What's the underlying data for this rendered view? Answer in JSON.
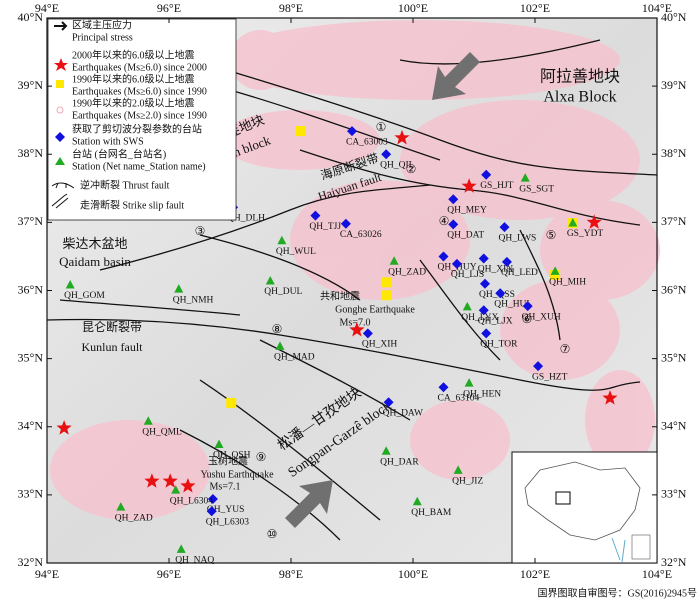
{
  "map": {
    "lon_lim": [
      94,
      104
    ],
    "lat_lim": [
      32,
      40
    ],
    "lon_ticks": [
      {
        "value": 94,
        "label": "94°E"
      },
      {
        "value": 96,
        "label": "96°E"
      },
      {
        "value": 98,
        "label": "98°E"
      },
      {
        "value": 100,
        "label": "100°E"
      },
      {
        "value": 102,
        "label": "102°E"
      },
      {
        "value": 104,
        "label": "104°E"
      }
    ],
    "lat_ticks": [
      {
        "value": 32,
        "label": "32°N"
      },
      {
        "value": 33,
        "label": "33°N"
      },
      {
        "value": 34,
        "label": "34°N"
      },
      {
        "value": 35,
        "label": "35°N"
      },
      {
        "value": 36,
        "label": "36°N"
      },
      {
        "value": 37,
        "label": "37°N"
      },
      {
        "value": 38,
        "label": "38°N"
      },
      {
        "value": 39,
        "label": "39°N"
      },
      {
        "value": 40,
        "label": "40°N"
      }
    ],
    "colors": {
      "sws": "#1010e0",
      "station": "#22aa22",
      "eq2000": "#e81010",
      "eq1990": "#ffe800",
      "eq_small": "#f4a8b8"
    }
  },
  "legend": [
    "区域主压应力",
    "Principal stress",
    "2000年以来的6.0级以上地震",
    "Earthquakes (Ms≥6.0) since 2000",
    "1990年以来的6.0级以上地震",
    "Earthquakes (Ms≥6.0) since 1990",
    "1990年以来的2.0级以上地震",
    "Earthquakes (Ms≥2.0) since 1990",
    "获取了剪切波分裂参数的台站",
    "Station with SWS",
    "台站 (台网名_台站名)",
    "Station (Net name_Station name)",
    "逆冲断裂 Thrust fault",
    "走滑断裂 Strike slip fault"
  ],
  "regions": [
    "阿拉善地块",
    "Alxa  Block",
    "祁连地块",
    "Qilian block",
    "海原断裂带",
    "Haiyuan fault",
    "柴达木盆地",
    "Qaidam basin",
    "昆仑断裂带",
    "Kunlun fault",
    "松潘—甘孜地块",
    "Songpan-Garzê block",
    "共和地震",
    "Gonghe Earthquake",
    "Ms=7.0",
    "玉树地震",
    "Yushu Earthquake",
    "Ms=7.1"
  ],
  "fault_numbers": [
    "①",
    "②",
    "③",
    "④",
    "⑤",
    "⑥",
    "⑦",
    "⑧",
    "⑨",
    "⑩"
  ],
  "stations": [
    {
      "name": "CA_63003",
      "kind": "sws",
      "lon": 99.0,
      "lat": 38.34
    },
    {
      "name": "QH_QIL",
      "kind": "sws",
      "lon": 99.56,
      "lat": 38.0
    },
    {
      "name": "GS_HJT",
      "kind": "sws",
      "lon": 101.2,
      "lat": 37.7
    },
    {
      "name": "QH_MEY",
      "kind": "sws",
      "lon": 100.66,
      "lat": 37.34
    },
    {
      "name": "QH_DLH",
      "kind": "sws",
      "lon": 97.05,
      "lat": 37.22
    },
    {
      "name": "QH_TJJ",
      "kind": "sws",
      "lon": 98.4,
      "lat": 37.1
    },
    {
      "name": "CA_63026",
      "kind": "sws",
      "lon": 98.9,
      "lat": 36.98
    },
    {
      "name": "QH_DAT",
      "kind": "sws",
      "lon": 100.66,
      "lat": 36.97
    },
    {
      "name": "QH_LWS",
      "kind": "sws",
      "lon": 101.5,
      "lat": 36.93
    },
    {
      "name": "QH_HUY",
      "kind": "sws",
      "lon": 100.5,
      "lat": 36.5
    },
    {
      "name": "QH_XIN",
      "kind": "sws",
      "lon": 101.16,
      "lat": 36.47
    },
    {
      "name": "QH_LJS",
      "kind": "sws",
      "lon": 100.72,
      "lat": 36.39
    },
    {
      "name": "QH_LED",
      "kind": "sws",
      "lon": 101.54,
      "lat": 36.42
    },
    {
      "name": "QH_QSS",
      "kind": "sws",
      "lon": 101.18,
      "lat": 36.1
    },
    {
      "name": "QH_HUL",
      "kind": "sws",
      "lon": 101.43,
      "lat": 35.96
    },
    {
      "name": "QH_XUH",
      "kind": "sws",
      "lon": 101.88,
      "lat": 35.77
    },
    {
      "name": "QH_LJX",
      "kind": "sws",
      "lon": 101.16,
      "lat": 35.71
    },
    {
      "name": "QH_XIH",
      "kind": "sws",
      "lon": 99.26,
      "lat": 35.37
    },
    {
      "name": "QH_TOR",
      "kind": "sws",
      "lon": 101.2,
      "lat": 35.37
    },
    {
      "name": "GS_HZT",
      "kind": "sws",
      "lon": 102.05,
      "lat": 34.89
    },
    {
      "name": "CA_63104",
      "kind": "sws",
      "lon": 100.5,
      "lat": 34.58
    },
    {
      "name": "QH_DAW",
      "kind": "sws",
      "lon": 99.6,
      "lat": 34.36
    },
    {
      "name": "QH_YUS",
      "kind": "sws",
      "lon": 96.72,
      "lat": 32.94
    },
    {
      "name": "QH_L6303",
      "kind": "sws",
      "lon": 96.7,
      "lat": 32.76
    },
    {
      "name": "QH_GOM",
      "kind": "station",
      "lon": 94.38,
      "lat": 36.08
    },
    {
      "name": "QH_NMH",
      "kind": "station",
      "lon": 96.16,
      "lat": 36.02
    },
    {
      "name": "QH_WUL",
      "kind": "station",
      "lon": 97.85,
      "lat": 36.73
    },
    {
      "name": "QH_DUL",
      "kind": "station",
      "lon": 97.66,
      "lat": 36.14
    },
    {
      "name": "QH_ZAD",
      "kind": "station",
      "lon": 99.69,
      "lat": 36.43
    },
    {
      "name": "QH_LYX",
      "kind": "station",
      "lon": 100.89,
      "lat": 35.76
    },
    {
      "name": "QH_MAD",
      "kind": "station",
      "lon": 97.82,
      "lat": 35.18
    },
    {
      "name": "QH_HEN",
      "kind": "station",
      "lon": 100.92,
      "lat": 34.64
    },
    {
      "name": "QH_QML",
      "kind": "station",
      "lon": 95.66,
      "lat": 34.08
    },
    {
      "name": "QH_QSH",
      "kind": "station",
      "lon": 96.82,
      "lat": 33.74
    },
    {
      "name": "QH_DAR",
      "kind": "station",
      "lon": 99.56,
      "lat": 33.64
    },
    {
      "name": "QH_JIZ",
      "kind": "station",
      "lon": 100.74,
      "lat": 33.36
    },
    {
      "name": "QH_ZAD",
      "kind": "station",
      "lon": 95.21,
      "lat": 32.82
    },
    {
      "name": "QH_L6304",
      "kind": "station",
      "lon": 96.11,
      "lat": 33.07
    },
    {
      "name": "QH_BAM",
      "kind": "station",
      "lon": 100.07,
      "lat": 32.9
    },
    {
      "name": "QH_NAQ",
      "kind": "station",
      "lon": 96.2,
      "lat": 32.2
    },
    {
      "name": "QH_MIH",
      "kind": "station",
      "lon": 102.33,
      "lat": 36.28
    },
    {
      "name": "GS_SGT",
      "kind": "station",
      "lon": 101.84,
      "lat": 37.65
    },
    {
      "name": "GS_YDT",
      "kind": "station",
      "lon": 102.62,
      "lat": 36.99
    }
  ],
  "earthquakes_2000": [
    {
      "lon": 99.82,
      "lat": 38.24
    },
    {
      "lon": 100.92,
      "lat": 37.53
    },
    {
      "lon": 102.97,
      "lat": 37.0
    },
    {
      "lon": 99.08,
      "lat": 35.42
    },
    {
      "lon": 103.23,
      "lat": 34.42
    },
    {
      "lon": 94.28,
      "lat": 33.98
    },
    {
      "lon": 95.72,
      "lat": 33.2
    },
    {
      "lon": 96.02,
      "lat": 33.2
    },
    {
      "lon": 96.31,
      "lat": 33.13
    }
  ],
  "earthquakes_1990": [
    {
      "lon": 98.16,
      "lat": 38.34
    },
    {
      "lon": 99.56,
      "lat": 36.12
    },
    {
      "lon": 99.56,
      "lat": 35.93
    },
    {
      "lon": 102.62,
      "lat": 36.99
    },
    {
      "lon": 102.33,
      "lat": 36.23
    },
    {
      "lon": 97.02,
      "lat": 34.35
    }
  ],
  "footer": "国界图取自审图号：GS(2016)2945号"
}
